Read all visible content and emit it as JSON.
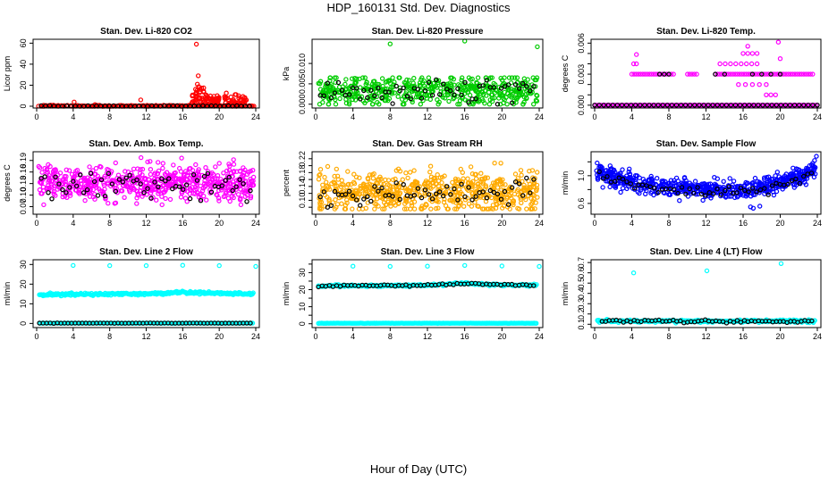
{
  "figure": {
    "title": "HDP_160131  Std. Dev. Diagnostics",
    "xlabel": "Hour of Day (UTC)"
  },
  "chart_data": [
    {
      "id": "co2",
      "type": "scatter",
      "title": "Stan. Dev. Li-820 CO2",
      "ylabel": "Licor ppm",
      "xlim": [
        0,
        24
      ],
      "ylim": [
        0,
        62
      ],
      "yticks": [
        0,
        20,
        40,
        60
      ],
      "xticks": [
        0,
        4,
        8,
        12,
        16,
        20,
        24
      ],
      "color": "#ff0000",
      "seed": 11,
      "n": 260,
      "base": {
        "mean": 0.3,
        "sd": 0.3,
        "lo": 0,
        "hi": 1
      },
      "bump": [
        {
          "from": 17,
          "to": 18.5,
          "mean": 10,
          "sd": 5
        },
        {
          "from": 18.5,
          "to": 20,
          "mean": 5,
          "sd": 3
        },
        {
          "from": 20.5,
          "to": 23,
          "mean": 6,
          "sd": 3
        }
      ],
      "outliers": [
        {
          "x": 17.5,
          "y": 59
        },
        {
          "x": 17.7,
          "y": 29
        },
        {
          "x": 17.6,
          "y": 21
        },
        {
          "x": 4.1,
          "y": 4
        },
        {
          "x": 11.4,
          "y": 6
        },
        {
          "x": 6.4,
          "y": 1.5
        }
      ],
      "black_n": 50,
      "black": {
        "mean": 0.2,
        "sd": 0.2,
        "lo": 0,
        "hi": 1
      }
    },
    {
      "id": "pressure",
      "type": "scatter",
      "title": "Stan. Dev. Li-820 Pressure",
      "ylabel": "kPa",
      "xlim": [
        0,
        24
      ],
      "ylim": [
        -0.0005,
        0.0155
      ],
      "yticks": [
        0,
        0.005,
        0.01
      ],
      "ytick_labels": [
        "0.000",
        "0.005",
        "0.010"
      ],
      "xticks": [
        0,
        4,
        8,
        12,
        16,
        20,
        24
      ],
      "color": "#00cc00",
      "seed": 23,
      "n": 520,
      "base": {
        "mean": 0.0035,
        "sd": 0.0018,
        "lo": 0,
        "hi": 0.0065
      },
      "outliers": [
        {
          "x": 8,
          "y": 0.0148
        },
        {
          "x": 16,
          "y": 0.0155
        },
        {
          "x": 23.8,
          "y": 0.0141
        }
      ],
      "black_n": 60,
      "black": {
        "mean": 0.003,
        "sd": 0.0017,
        "lo": 0,
        "hi": 0.006
      }
    },
    {
      "id": "temp",
      "type": "scatter",
      "title": "Stan. Dev. Li-820 Temp.",
      "ylabel": "degrees C",
      "xlim": [
        0,
        24
      ],
      "ylim": [
        -0.0001,
        0.0062
      ],
      "yticks": [
        0,
        0.001,
        0.002,
        0.003,
        0.004,
        0.005,
        0.006
      ],
      "ytick_labels": [
        "0.000",
        "",
        "",
        "0.003",
        "",
        "",
        "0.006"
      ],
      "xticks": [
        0,
        4,
        8,
        12,
        16,
        20,
        24
      ],
      "color": "#ff00ff",
      "seed": 37,
      "n": 0,
      "levels": [
        {
          "y": 0,
          "from": 0,
          "to": 24,
          "n": 140
        },
        {
          "y": 0.003,
          "from": 4,
          "to": 8.5,
          "n": 20
        },
        {
          "y": 0.003,
          "from": 10,
          "to": 11,
          "n": 5
        },
        {
          "y": 0.003,
          "from": 13,
          "to": 23.5,
          "n": 45
        },
        {
          "y": 0.004,
          "from": 4.2,
          "to": 4.5,
          "n": 2
        },
        {
          "y": 0.004,
          "from": 13.5,
          "to": 17.5,
          "n": 8
        },
        {
          "y": 0.005,
          "from": 16,
          "to": 17.5,
          "n": 4
        },
        {
          "y": 0.002,
          "from": 15.5,
          "to": 18.5,
          "n": 5
        },
        {
          "y": 0.001,
          "from": 18.5,
          "to": 19.5,
          "n": 3
        }
      ],
      "outliers": [
        {
          "x": 4.5,
          "y": 0.0049
        },
        {
          "x": 16.5,
          "y": 0.0057
        },
        {
          "x": 19.8,
          "y": 0.0061
        },
        {
          "x": 20,
          "y": 0.0045
        }
      ],
      "black_levels": [
        {
          "y": 0,
          "from": 0,
          "to": 24,
          "n": 50
        },
        {
          "y": 0.003,
          "from": 7,
          "to": 8,
          "n": 3
        },
        {
          "y": 0.003,
          "from": 13,
          "to": 14,
          "n": 2
        },
        {
          "y": 0.003,
          "from": 17,
          "to": 18,
          "n": 2
        },
        {
          "y": 0.003,
          "from": 19,
          "to": 20,
          "n": 2
        }
      ]
    },
    {
      "id": "ambbox",
      "type": "scatter",
      "title": "Stan. Dev. Amb. Box Temp.",
      "ylabel": "degrees C",
      "xlim": [
        0,
        24
      ],
      "ylim": [
        0.055,
        0.208
      ],
      "yticks": [
        0.07,
        0.1,
        0.13,
        0.16,
        0.19
      ],
      "ytick_labels": [
        "0.07",
        "0.10",
        "0.13",
        "0.16",
        "0.19"
      ],
      "xticks": [
        0,
        4,
        8,
        12,
        16,
        20,
        24
      ],
      "color": "#ff00ff",
      "seed": 41,
      "n": 620,
      "base": {
        "mean": 0.13,
        "sd": 0.022,
        "lo": 0.075,
        "hi": 0.205
      },
      "black_n": 60,
      "black": {
        "mean": 0.125,
        "sd": 0.018,
        "lo": 0.08,
        "hi": 0.18
      }
    },
    {
      "id": "rh",
      "type": "scatter",
      "title": "Stan. Dev. Gas Stream RH",
      "ylabel": "percent",
      "xlim": [
        0,
        24
      ],
      "ylim": [
        0.065,
        0.235
      ],
      "yticks": [
        0.08,
        0.1,
        0.12,
        0.14,
        0.16,
        0.18,
        0.2,
        0.22
      ],
      "ytick_labels": [
        "",
        "0.10",
        "",
        "0.14",
        "",
        "0.18",
        "",
        "0.22"
      ],
      "xticks": [
        0,
        4,
        8,
        12,
        16,
        20,
        24
      ],
      "color": "#ffaa00",
      "seed": 53,
      "n": 620,
      "base": {
        "mean": 0.125,
        "sd": 0.03,
        "lo": 0.075,
        "hi": 0.225
      },
      "black_n": 60,
      "black": {
        "mean": 0.12,
        "sd": 0.022,
        "lo": 0.08,
        "hi": 0.19
      }
    },
    {
      "id": "sample",
      "type": "scatter",
      "title": "Stan. Dev. Sample Flow",
      "ylabel": "ml/min",
      "xlim": [
        0,
        24
      ],
      "ylim": [
        0.47,
        1.32
      ],
      "yticks": [
        0.6,
        0.8,
        1.0,
        1.2
      ],
      "ytick_labels": [
        "0.6",
        "",
        "1.0",
        ""
      ],
      "xticks": [
        0,
        4,
        8,
        12,
        16,
        20,
        24
      ],
      "color": "#0000ff",
      "seed": 67,
      "n": 620,
      "curve": [
        [
          0,
          1.03
        ],
        [
          3,
          0.95
        ],
        [
          6,
          0.86
        ],
        [
          10,
          0.82
        ],
        [
          14,
          0.8
        ],
        [
          17,
          0.8
        ],
        [
          20,
          0.9
        ],
        [
          23,
          1.02
        ],
        [
          24,
          1.12
        ]
      ],
      "noise": 0.06,
      "outliers": [
        {
          "x": 16.8,
          "y": 0.55
        },
        {
          "x": 17.1,
          "y": 0.53
        },
        {
          "x": 17.8,
          "y": 0.56
        },
        {
          "x": 23.9,
          "y": 1.28
        },
        {
          "x": 23.7,
          "y": 1.22
        },
        {
          "x": 23.5,
          "y": 1.18
        }
      ],
      "black_n": 55,
      "black_curve_offset": -0.03,
      "black_noise": 0.04
    },
    {
      "id": "line2",
      "type": "scatter",
      "title": "Stan. Dev. Line 2 Flow",
      "ylabel": "ml/min",
      "xlim": [
        0,
        24
      ],
      "ylim": [
        -1.2,
        31.5
      ],
      "yticks": [
        0,
        10,
        20,
        30
      ],
      "xticks": [
        0,
        4,
        8,
        12,
        16,
        20,
        24
      ],
      "color": "#00ffff",
      "seed": 71,
      "n": 0,
      "bands": [
        {
          "mean": 15,
          "sd": 0.35,
          "n": 300,
          "from": 0,
          "to": 24,
          "drift": [
            [
              0,
              14.7
            ],
            [
              12,
              15.0
            ],
            [
              16,
              15.9
            ],
            [
              20,
              15.3
            ],
            [
              24,
              15.0
            ]
          ]
        },
        {
          "mean": 0.15,
          "sd": 0.05,
          "n": 160,
          "from": 0,
          "to": 24
        }
      ],
      "outliers": [
        {
          "x": 4,
          "y": 29.5
        },
        {
          "x": 8,
          "y": 29.4
        },
        {
          "x": 12,
          "y": 29.4
        },
        {
          "x": 16,
          "y": 29.6
        },
        {
          "x": 20,
          "y": 29.4
        },
        {
          "x": 24,
          "y": 29.0
        }
      ],
      "black_bands": [
        {
          "mean": 0.15,
          "sd": 0.05,
          "n": 60,
          "from": 0,
          "to": 24
        }
      ]
    },
    {
      "id": "line3",
      "type": "scatter",
      "title": "Stan. Dev. Line 3 Flow",
      "ylabel": "ml/min",
      "xlim": [
        0,
        24
      ],
      "ylim": [
        -1.2,
        36.5
      ],
      "yticks": [
        0,
        5,
        10,
        15,
        20,
        25,
        30,
        35
      ],
      "ytick_labels": [
        "0",
        "",
        "10",
        "",
        "20",
        "",
        "30",
        ""
      ],
      "xticks": [
        0,
        4,
        8,
        12,
        16,
        20,
        24
      ],
      "color": "#00ffff",
      "seed": 83,
      "n": 0,
      "bands": [
        {
          "mean": 22.5,
          "sd": 0.3,
          "n": 260,
          "from": 0,
          "to": 24,
          "drift": [
            [
              0,
              22.1
            ],
            [
              12,
              22.6
            ],
            [
              16,
              23.6
            ],
            [
              20,
              22.8
            ],
            [
              24,
              22.6
            ]
          ]
        },
        {
          "mean": 0.3,
          "sd": 0.05,
          "n": 200,
          "from": 0,
          "to": 24
        }
      ],
      "outliers": [
        {
          "x": 4,
          "y": 33.8
        },
        {
          "x": 8,
          "y": 33.6
        },
        {
          "x": 12,
          "y": 33.8
        },
        {
          "x": 16,
          "y": 34.2
        },
        {
          "x": 20,
          "y": 33.9
        },
        {
          "x": 24,
          "y": 33.6
        }
      ],
      "black_bands": [
        {
          "mean": 22.5,
          "sd": 0.3,
          "n": 60,
          "from": 0,
          "to": 24,
          "drift": [
            [
              0,
              22.1
            ],
            [
              12,
              22.6
            ],
            [
              16,
              23.6
            ],
            [
              20,
              22.8
            ],
            [
              24,
              22.6
            ]
          ]
        }
      ]
    },
    {
      "id": "line4",
      "type": "scatter",
      "title": "Stan. Dev. Line 4 (LT) Flow",
      "ylabel": "ml/min",
      "xlim": [
        0,
        24
      ],
      "ylim": [
        0.085,
        0.71
      ],
      "yticks": [
        0.1,
        0.2,
        0.3,
        0.4,
        0.5,
        0.6,
        0.7
      ],
      "xticks": [
        0,
        4,
        8,
        12,
        16,
        20,
        24
      ],
      "color": "#00ffff",
      "seed": 97,
      "n": 0,
      "bands": [
        {
          "mean": 0.13,
          "sd": 0.006,
          "n": 320,
          "from": 0,
          "to": 24
        }
      ],
      "outliers": [
        {
          "x": 4.2,
          "y": 0.6
        },
        {
          "x": 12.1,
          "y": 0.62
        },
        {
          "x": 20.1,
          "y": 0.69
        }
      ],
      "black_bands": [
        {
          "mean": 0.13,
          "sd": 0.008,
          "n": 60,
          "from": 0.5,
          "to": 24
        }
      ]
    }
  ]
}
